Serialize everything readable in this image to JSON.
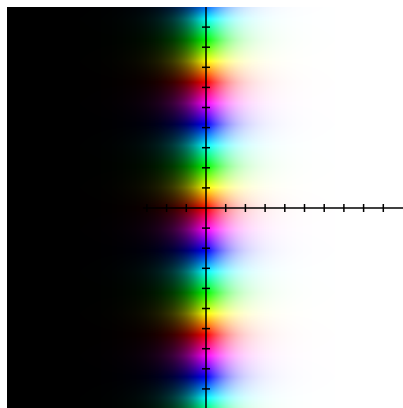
{
  "figure": {
    "kind": "domain-coloring",
    "function": "exp(z)",
    "hue_encoding": "argument",
    "lightness_encoding": "modulus",
    "background": "#ffffff",
    "axis_color": "#000000",
    "x_range": [
      -10,
      10
    ],
    "y_range": [
      -10,
      10
    ],
    "x_tick_step": 1,
    "y_tick_step": 1,
    "tick_labels": "none"
  }
}
